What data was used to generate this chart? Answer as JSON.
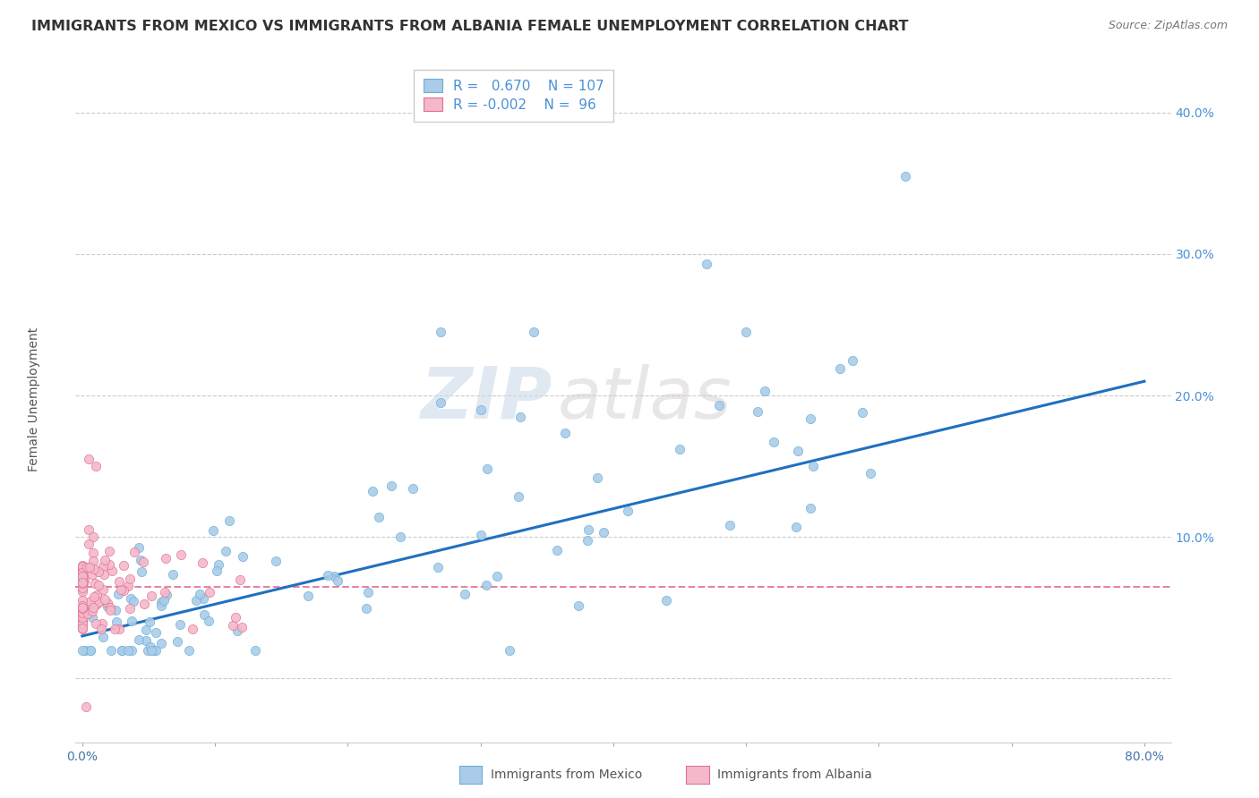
{
  "title": "IMMIGRANTS FROM MEXICO VS IMMIGRANTS FROM ALBANIA FEMALE UNEMPLOYMENT CORRELATION CHART",
  "source": "Source: ZipAtlas.com",
  "ylabel": "Female Unemployment",
  "mexico_R": 0.67,
  "mexico_N": 107,
  "albania_R": -0.002,
  "albania_N": 96,
  "mexico_color": "#aacce8",
  "mexico_edge": "#6aaed6",
  "albania_color": "#f4b8ca",
  "albania_edge": "#e07090",
  "trend_mexico_color": "#2070c0",
  "trend_albania_color": "#e07090",
  "watermark_zip": "ZIP",
  "watermark_atlas": "atlas",
  "legend_label_mexico": "Immigrants from Mexico",
  "legend_label_albania": "Immigrants from Albania",
  "xlim": [
    -0.005,
    0.82
  ],
  "ylim": [
    -0.045,
    0.44
  ],
  "x_tick_positions": [
    0.0,
    0.1,
    0.2,
    0.3,
    0.4,
    0.5,
    0.6,
    0.7,
    0.8
  ],
  "y_tick_positions": [
    0.0,
    0.1,
    0.2,
    0.3,
    0.4
  ],
  "y_labels_shown": [
    "10.0%",
    "20.0%",
    "30.0%",
    "40.0%"
  ],
  "trend_mexico_x0": 0.0,
  "trend_mexico_y0": 0.03,
  "trend_mexico_x1": 0.8,
  "trend_mexico_y1": 0.21,
  "trend_albania_y": 0.065,
  "grid_color": "#cccccc",
  "grid_style": "--",
  "title_fontsize": 11.5,
  "source_fontsize": 9,
  "ylabel_fontsize": 10,
  "tick_label_fontsize": 10,
  "legend_fontsize": 11,
  "scatter_size_mexico": 55,
  "scatter_size_albania": 55
}
